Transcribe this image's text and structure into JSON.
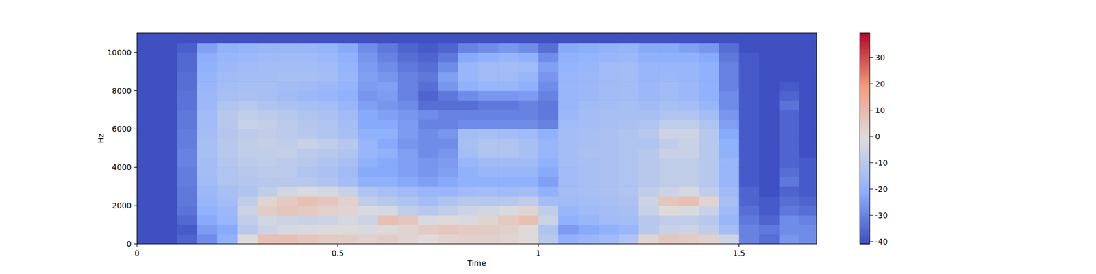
{
  "chart_data": {
    "type": "heatmap",
    "x_label": "Time",
    "y_label": "Hz",
    "xlim": [
      0,
      1.693
    ],
    "ylim": [
      0,
      11025
    ],
    "xticks": [
      0,
      0.5,
      1,
      1.5
    ],
    "yticks": [
      0,
      2000,
      4000,
      6000,
      8000,
      10000
    ],
    "time_bins": [
      0,
      0.05,
      0.1,
      0.15,
      0.2,
      0.25,
      0.3,
      0.35,
      0.4,
      0.45,
      0.5,
      0.55,
      0.6,
      0.65,
      0.7,
      0.75,
      0.8,
      0.85,
      0.9,
      0.95,
      1.0,
      1.05,
      1.1,
      1.15,
      1.2,
      1.25,
      1.3,
      1.35,
      1.4,
      1.45,
      1.5,
      1.55,
      1.6,
      1.65,
      1.693
    ],
    "freq_bins": [
      0,
      500,
      1000,
      1500,
      2000,
      2500,
      3000,
      3500,
      4000,
      4500,
      5000,
      5500,
      6000,
      6500,
      7000,
      7500,
      8000,
      8500,
      9000,
      9500,
      10000,
      10500,
      11025
    ],
    "values": [
      [
        -40,
        -40,
        -40,
        -40,
        -40,
        -40,
        -40,
        -40,
        -40,
        -40,
        -40,
        -40,
        -40,
        -40,
        -40,
        -40,
        -40,
        -40,
        -40,
        -40,
        -40,
        -40
      ],
      [
        -40,
        -40,
        -40,
        -40,
        -40,
        -40,
        -40,
        -40,
        -40,
        -40,
        -40,
        -40,
        -40,
        -40,
        -40,
        -40,
        -40,
        -40,
        -40,
        -40,
        -40,
        -40
      ],
      [
        -36,
        -38,
        -35,
        -33,
        -32,
        -32,
        -31,
        -31,
        -30,
        -30,
        -31,
        -31,
        -32,
        -32,
        -33,
        -33,
        -34,
        -34,
        -35,
        -35,
        -37,
        -40
      ],
      [
        -28,
        -25,
        -22,
        -20,
        -18,
        -17,
        -16,
        -15,
        -15,
        -14,
        -14,
        -15,
        -16,
        -16,
        -17,
        -17,
        -18,
        -19,
        -20,
        -21,
        -24,
        -40
      ],
      [
        -20,
        -22,
        -18,
        -17,
        -15,
        -14,
        -12,
        -12,
        -11,
        -10,
        -10,
        -11,
        -10,
        -10,
        -12,
        -14,
        -15,
        -16,
        -17,
        -18,
        -20,
        -40
      ],
      [
        0,
        -10,
        -8,
        -5,
        -8,
        -12,
        -11,
        -10,
        -9,
        -8,
        -8,
        -9,
        -6,
        -8,
        -10,
        -13,
        -14,
        -15,
        -16,
        -17,
        -19,
        -40
      ],
      [
        8,
        -5,
        -4,
        4,
        2,
        -8,
        -10,
        -9,
        -8,
        -8,
        -7,
        -8,
        -7,
        -9,
        -12,
        -14,
        -14,
        -15,
        -15,
        -16,
        -18,
        -40
      ],
      [
        8,
        -3,
        -5,
        6,
        5,
        -4,
        -10,
        -9,
        -9,
        -7,
        -8,
        -9,
        -9,
        -10,
        -13,
        -16,
        -15,
        -14,
        -15,
        -16,
        -18,
        -40
      ],
      [
        6,
        -2,
        -6,
        5,
        8,
        -2,
        -10,
        -12,
        -10,
        -9,
        -6,
        -10,
        -11,
        -12,
        -14,
        -17,
        -16,
        -14,
        -15,
        -16,
        -18,
        -40
      ],
      [
        5,
        0,
        -5,
        3,
        6,
        -3,
        -12,
        -13,
        -12,
        -10,
        -8,
        -12,
        -12,
        -13,
        -15,
        -18,
        -17,
        -15,
        -16,
        -17,
        -19,
        -40
      ],
      [
        4,
        0,
        -3,
        2,
        3,
        -6,
        -15,
        -16,
        -14,
        -12,
        -10,
        -14,
        -15,
        -16,
        -18,
        -20,
        -19,
        -18,
        -19,
        -20,
        -22,
        -40
      ],
      [
        3,
        -2,
        -5,
        -2,
        -8,
        -12,
        -20,
        -22,
        -20,
        -18,
        -18,
        -20,
        -22,
        -22,
        -24,
        -26,
        -25,
        -24,
        -25,
        -26,
        -28,
        -40
      ],
      [
        4,
        0,
        8,
        -3,
        -10,
        -14,
        -20,
        -22,
        -22,
        -20,
        -22,
        -20,
        -22,
        -24,
        -26,
        -25,
        -24,
        -26,
        -28,
        -30,
        -32,
        -40
      ],
      [
        2,
        2,
        6,
        -8,
        -12,
        -16,
        -22,
        -24,
        -24,
        -24,
        -26,
        -25,
        -25,
        -26,
        -28,
        -30,
        -30,
        -30,
        -32,
        -34,
        -36,
        -40
      ],
      [
        0,
        5,
        -2,
        -10,
        -15,
        -18,
        -24,
        -26,
        -26,
        -28,
        -28,
        -28,
        -30,
        -28,
        -34,
        -36,
        -34,
        -32,
        -34,
        -36,
        -38,
        -40
      ],
      [
        2,
        6,
        0,
        -8,
        -12,
        -18,
        -22,
        -24,
        -25,
        -26,
        -28,
        -26,
        -30,
        -30,
        -34,
        -32,
        -26,
        -24,
        -28,
        -32,
        -36,
        -40
      ],
      [
        3,
        5,
        -2,
        -5,
        -10,
        -16,
        -20,
        -20,
        -18,
        -15,
        -14,
        -15,
        -28,
        -30,
        -34,
        -28,
        -20,
        -18,
        -18,
        -22,
        -30,
        -40
      ],
      [
        3,
        4,
        2,
        -4,
        -10,
        -15,
        -20,
        -18,
        -16,
        -12,
        -12,
        -14,
        -28,
        -30,
        -32,
        -26,
        -18,
        -16,
        -16,
        -20,
        -28,
        -40
      ],
      [
        2,
        3,
        5,
        -2,
        -10,
        -16,
        -20,
        -18,
        -16,
        -12,
        -12,
        -15,
        -28,
        -30,
        -32,
        -26,
        -18,
        -16,
        -15,
        -18,
        -26,
        -40
      ],
      [
        0,
        0,
        8,
        2,
        -8,
        -15,
        -20,
        -18,
        -16,
        -14,
        -14,
        -16,
        -28,
        -30,
        -30,
        -25,
        -20,
        -18,
        -16,
        -20,
        -28,
        -40
      ],
      [
        -10,
        -12,
        -5,
        -8,
        -15,
        -20,
        -24,
        -22,
        -20,
        -18,
        -18,
        -20,
        -30,
        -32,
        -32,
        -30,
        -28,
        -26,
        -24,
        -28,
        -34,
        -40
      ],
      [
        -20,
        -25,
        -20,
        -18,
        -16,
        -15,
        -16,
        -16,
        -15,
        -15,
        -15,
        -15,
        -16,
        -17,
        -18,
        -18,
        -18,
        -18,
        -19,
        -20,
        -22,
        -40
      ],
      [
        -18,
        -22,
        -18,
        -16,
        -15,
        -14,
        -14,
        -14,
        -14,
        -13,
        -14,
        -14,
        -15,
        -15,
        -16,
        -17,
        -17,
        -17,
        -18,
        -19,
        -21,
        -40
      ],
      [
        -16,
        -20,
        -16,
        -15,
        -14,
        -13,
        -13,
        -13,
        -13,
        -13,
        -13,
        -13,
        -14,
        -14,
        -15,
        -16,
        -16,
        -16,
        -16,
        -18,
        -20,
        -40
      ],
      [
        -12,
        -18,
        -15,
        -14,
        -13,
        -12,
        -12,
        -12,
        -12,
        -12,
        -12,
        -12,
        -13,
        -14,
        -14,
        -15,
        -15,
        -15,
        -15,
        -17,
        -19,
        -40
      ],
      [
        2,
        -10,
        -10,
        -6,
        -5,
        -8,
        -10,
        -10,
        -10,
        -10,
        -12,
        -10,
        -12,
        -14,
        -16,
        -17,
        -17,
        -18,
        -18,
        -20,
        -22,
        -40
      ],
      [
        6,
        -6,
        -8,
        0,
        6,
        -5,
        -8,
        -8,
        -8,
        -6,
        -8,
        -5,
        -8,
        -12,
        -14,
        -16,
        -16,
        -17,
        -18,
        -20,
        -22,
        -40
      ],
      [
        5,
        -5,
        -8,
        -2,
        8,
        -3,
        -8,
        -8,
        -8,
        -6,
        -6,
        -5,
        -8,
        -12,
        -15,
        -17,
        -17,
        -18,
        -18,
        -20,
        -24,
        -40
      ],
      [
        3,
        -8,
        -10,
        -6,
        2,
        -8,
        -10,
        -10,
        -10,
        -10,
        -10,
        -10,
        -12,
        -15,
        -18,
        -20,
        -20,
        -20,
        -20,
        -22,
        -26,
        -40
      ],
      [
        -5,
        -15,
        -18,
        -16,
        -14,
        -16,
        -18,
        -18,
        -18,
        -20,
        -20,
        -22,
        -24,
        -26,
        -28,
        -28,
        -30,
        -30,
        -30,
        -32,
        -34,
        -40
      ],
      [
        -30,
        -30,
        -32,
        -34,
        -36,
        -36,
        -38,
        -38,
        -38,
        -38,
        -38,
        -38,
        -38,
        -38,
        -38,
        -38,
        -38,
        -38,
        -38,
        -38,
        -40,
        -40
      ],
      [
        -34,
        -32,
        -36,
        -38,
        -38,
        -40,
        -40,
        -40,
        -40,
        -40,
        -40,
        -40,
        -40,
        -40,
        -40,
        -40,
        -40,
        -40,
        -40,
        -40,
        -40,
        -40
      ],
      [
        -26,
        -28,
        -28,
        -32,
        -34,
        -36,
        -32,
        -34,
        -36,
        -36,
        -36,
        -36,
        -36,
        -36,
        -33,
        -36,
        -38,
        -40,
        -40,
        -40,
        -40,
        -40
      ],
      [
        -28,
        -28,
        -30,
        -34,
        -36,
        -38,
        -38,
        -38,
        -38,
        -40,
        -40,
        -40,
        -40,
        -40,
        -40,
        -40,
        -40,
        -40,
        -40,
        -40,
        -40,
        -40
      ]
    ],
    "colorbar": {
      "range": [
        -40.8,
        39.3
      ],
      "ticks": [
        -40,
        -30,
        -20,
        -10,
        0,
        10,
        20,
        30
      ]
    }
  }
}
